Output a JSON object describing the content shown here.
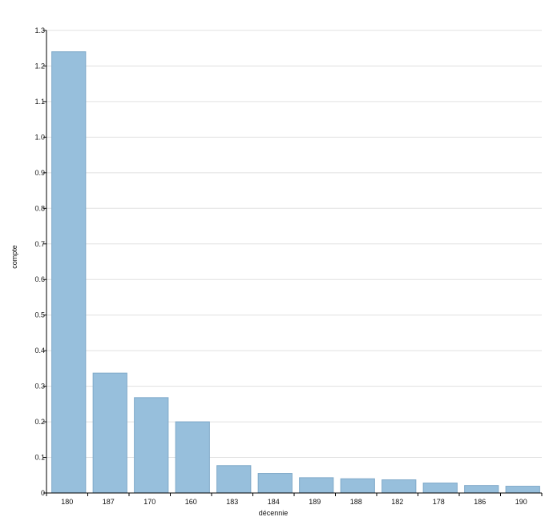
{
  "chart_data": {
    "type": "bar",
    "categories": [
      "180",
      "187",
      "170",
      "160",
      "183",
      "184",
      "189",
      "188",
      "182",
      "178",
      "186",
      "190"
    ],
    "values": [
      1.24,
      0.337,
      0.268,
      0.2,
      0.077,
      0.055,
      0.043,
      0.04,
      0.037,
      0.028,
      0.021,
      0.019
    ],
    "xlabel": "décennie",
    "ylabel": "compte",
    "ylim": [
      0,
      1.3
    ],
    "yticks": [
      "0",
      "0.1",
      "0.2",
      "0.3",
      "0.4",
      "0.5",
      "0.6",
      "0.7",
      "0.8",
      "0.9",
      "1.0",
      "1.1",
      "1.2",
      "1.3"
    ],
    "grid": true,
    "bar_color": "#97bfdc",
    "bar_border_color": "#7fa9c9"
  }
}
